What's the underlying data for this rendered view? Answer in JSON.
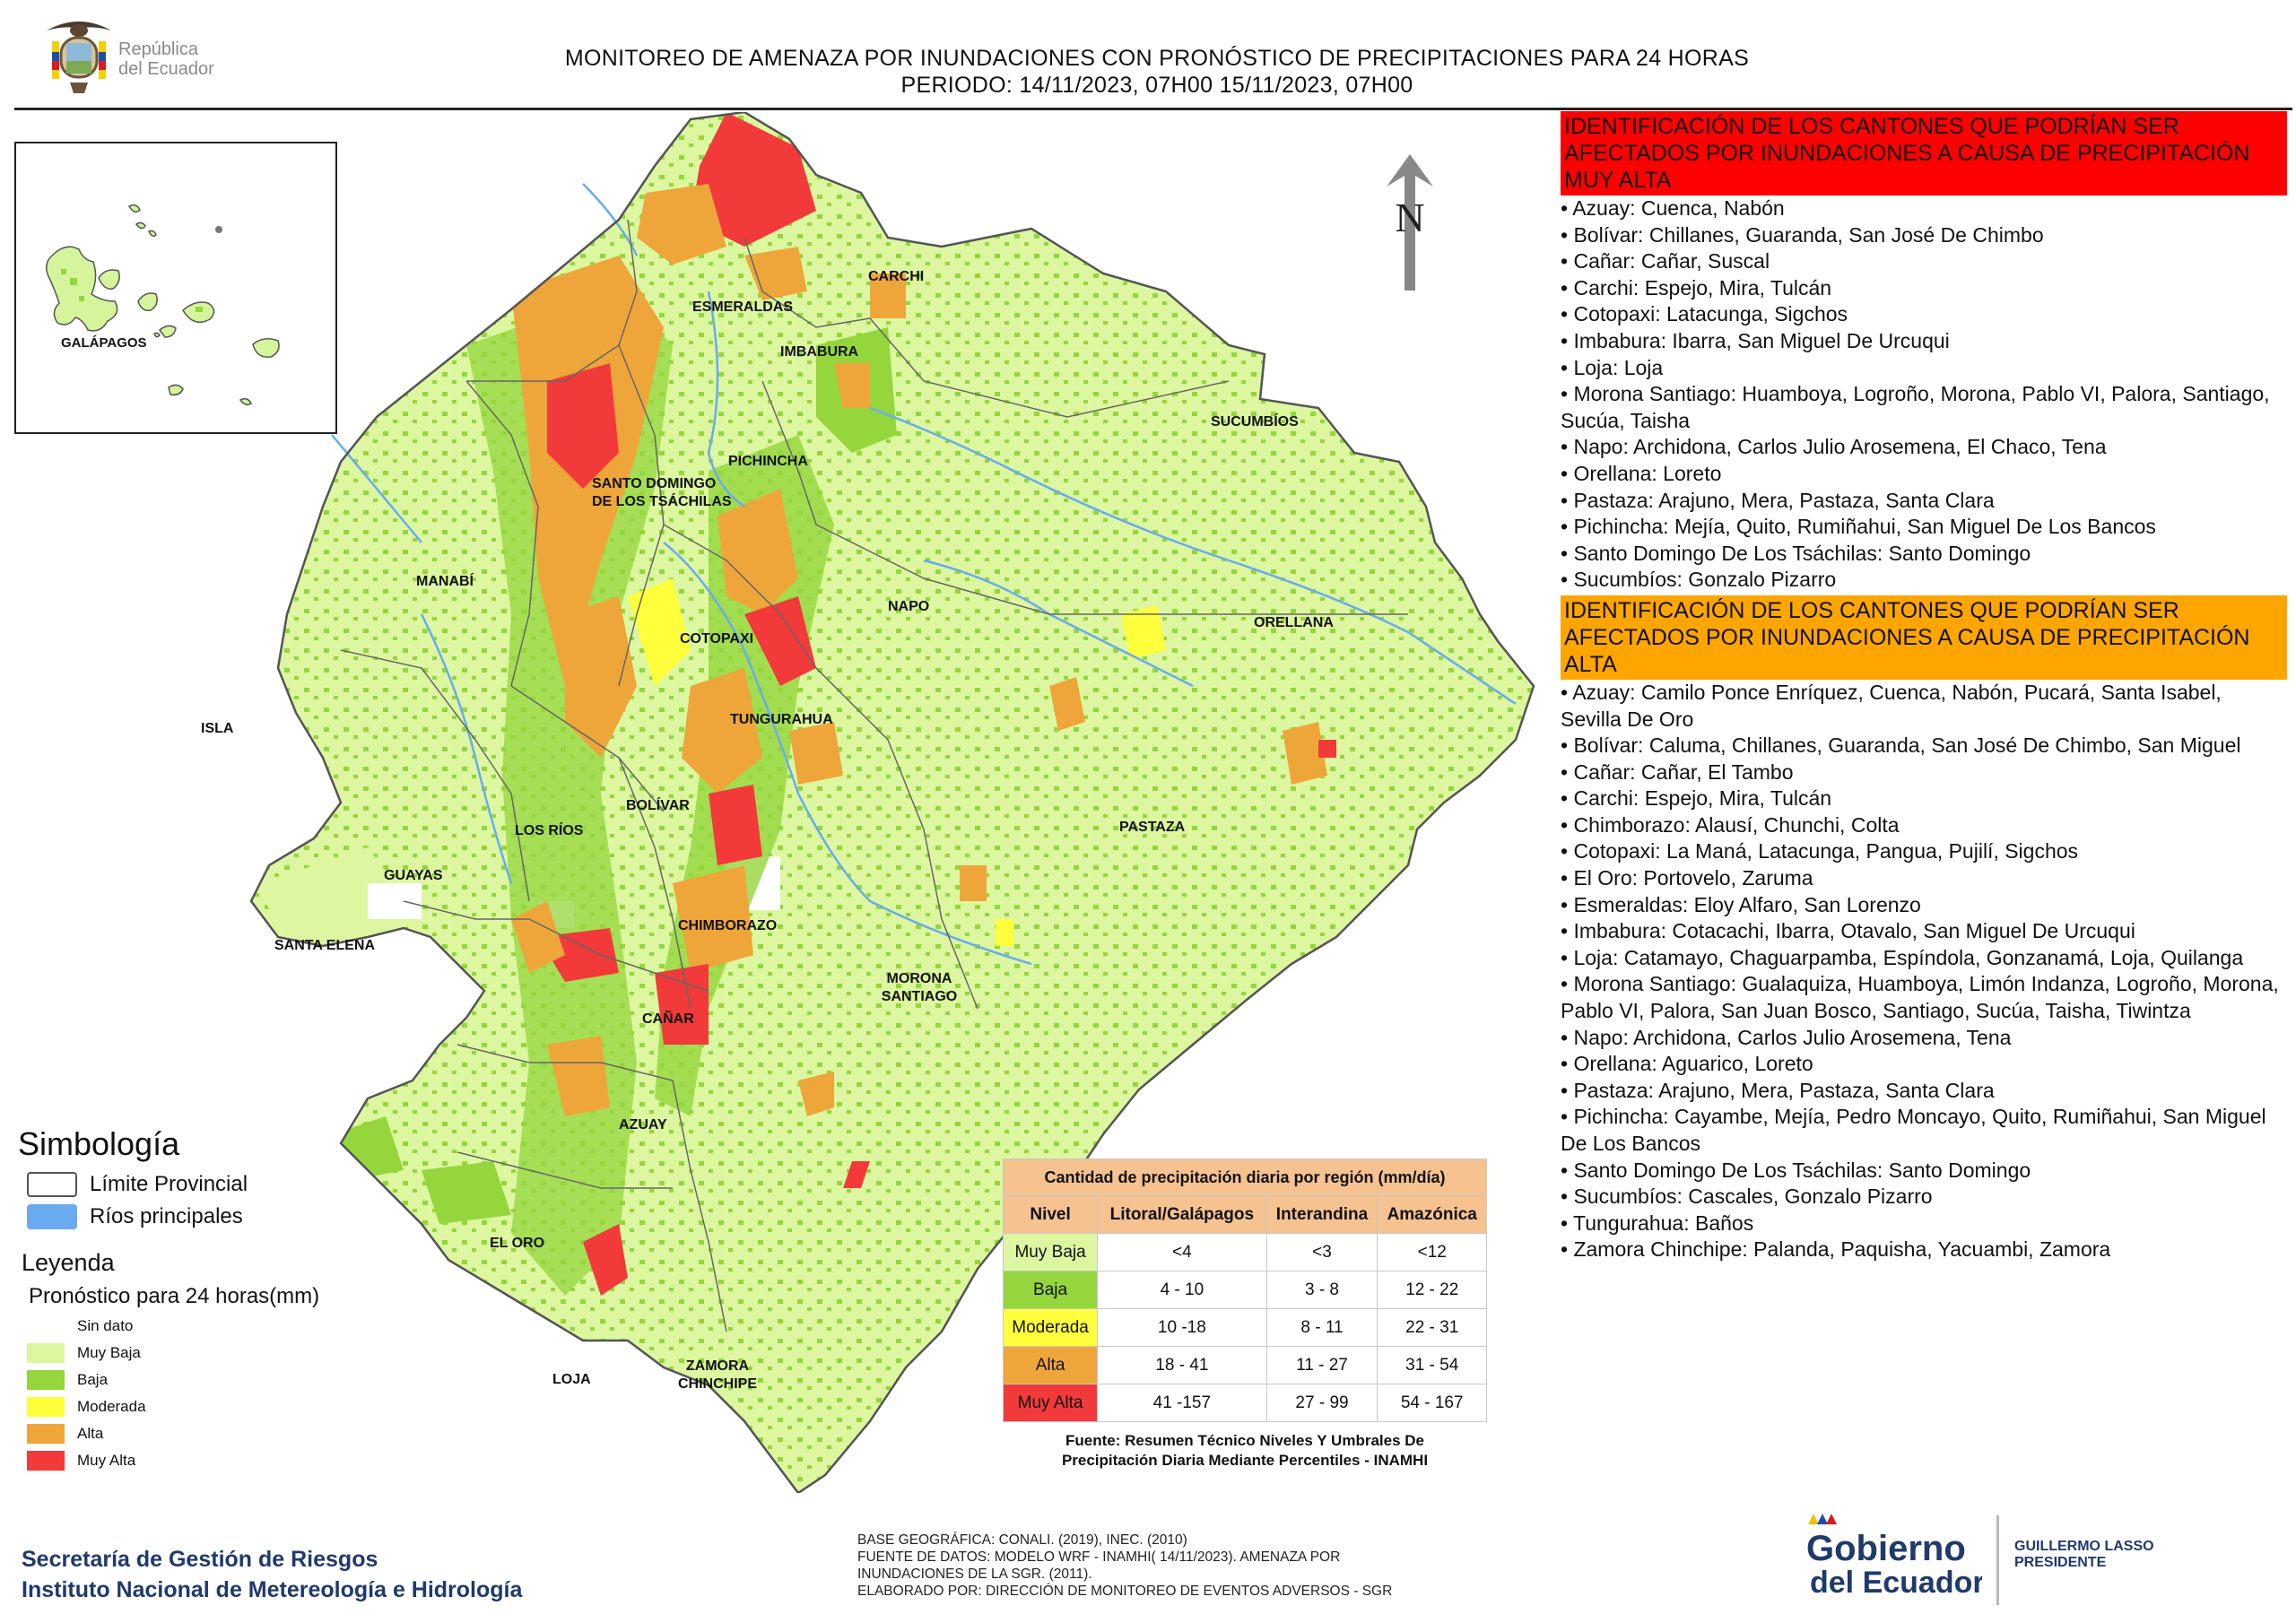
{
  "header": {
    "title_line1": "MONITOREO DE AMENAZA POR INUNDACIONES  CON PRONÓSTICO DE  PRECIPITACIONES PARA 24 HORAS",
    "title_line2": "PERIODO: 14/11/2023, 07H00 15/11/2023, 07H00",
    "logo_text_1": "República",
    "logo_text_2": "del Ecuador"
  },
  "map": {
    "north_label": "N",
    "inset_label": "GALÁPAGOS",
    "provinces": [
      {
        "id": "carchi",
        "label": "CARCHI"
      },
      {
        "id": "esmeraldas",
        "label": "ESMERALDAS"
      },
      {
        "id": "imbabura",
        "label": "IMBABURA"
      },
      {
        "id": "sucumbios",
        "label": "SUCUMBÍOS"
      },
      {
        "id": "pichincha",
        "label": "PICHINCHA"
      },
      {
        "id": "santo-domingo",
        "label": "SANTO DOMINGO DE LOS TSÁCHILAS"
      },
      {
        "id": "manabi",
        "label": "MANABÍ"
      },
      {
        "id": "napo",
        "label": "NAPO"
      },
      {
        "id": "orellana",
        "label": "ORELLANA"
      },
      {
        "id": "cotopaxi",
        "label": "COTOPAXI"
      },
      {
        "id": "isla",
        "label": "ISLA"
      },
      {
        "id": "tungurahua",
        "label": "TUNGURAHUA"
      },
      {
        "id": "bolivar",
        "label": "BOLÍVAR"
      },
      {
        "id": "pastaza",
        "label": "PASTAZA"
      },
      {
        "id": "los-rios",
        "label": "LOS RÍOS"
      },
      {
        "id": "guayas",
        "label": "GUAYAS"
      },
      {
        "id": "santa-elena",
        "label": "SANTA ELENA"
      },
      {
        "id": "chimborazo",
        "label": "CHIMBORAZO"
      },
      {
        "id": "morona",
        "label": "MORONA SANTIAGO"
      },
      {
        "id": "canar",
        "label": "CAÑAR"
      },
      {
        "id": "azuay",
        "label": "AZUAY"
      },
      {
        "id": "el-oro",
        "label": "EL ORO"
      },
      {
        "id": "loja",
        "label": "LOJA"
      },
      {
        "id": "zamora",
        "label": "ZAMORA CHINCHIPE"
      }
    ]
  },
  "muy_alta": {
    "heading": "IDENTIFICACIÓN DE LOS CANTONES QUE PODRÍAN SER AFECTADOS POR INUNDACIONES  A CAUSA DE PRECIPITACIÓN MUY ALTA",
    "items": [
      "Azuay: Cuenca, Nabón",
      "Bolívar: Chillanes, Guaranda, San José De Chimbo",
      "Cañar: Cañar, Suscal",
      "Carchi: Espejo, Mira, Tulcán",
      "Cotopaxi: Latacunga, Sigchos",
      "Imbabura: Ibarra, San Miguel De Urcuqui",
      "Loja: Loja",
      "Morona Santiago: Huamboya, Logroño, Morona, Pablo VI, Palora, Santiago, Sucúa, Taisha",
      "Napo: Archidona, Carlos Julio Arosemena, El Chaco, Tena",
      "Orellana: Loreto",
      "Pastaza: Arajuno, Mera, Pastaza, Santa Clara",
      "Pichincha: Mejía, Quito, Rumiñahui, San Miguel De Los Bancos",
      "Santo Domingo De Los Tsáchilas: Santo Domingo",
      "Sucumbíos: Gonzalo Pizarro"
    ]
  },
  "alta": {
    "heading": "IDENTIFICACIÓN DE LOS CANTONES QUE  PODRÍAN SER AFECTADOS POR INUNDACIONES  A CAUSA DE PRECIPITACIÓN ALTA",
    "items": [
      "Azuay: Camilo Ponce Enríquez, Cuenca, Nabón, Pucará, Santa Isabel, Sevilla De Oro",
      "Bolívar: Caluma, Chillanes, Guaranda, San José De Chimbo, San Miguel",
      "Cañar: Cañar, El Tambo",
      "Carchi: Espejo, Mira, Tulcán",
      "Chimborazo: Alausí, Chunchi, Colta",
      "Cotopaxi: La Maná, Latacunga, Pangua, Pujilí, Sigchos",
      "El Oro: Portovelo, Zaruma",
      "Esmeraldas: Eloy Alfaro, San Lorenzo",
      "Imbabura: Cotacachi, Ibarra, Otavalo, San Miguel De Urcuqui",
      "Loja: Catamayo, Chaguarpamba, Espíndola, Gonzanamá, Loja, Quilanga",
      "Morona Santiago: Gualaquiza, Huamboya, Limón Indanza, Logroño, Morona, Pablo VI, Palora, San Juan Bosco, Santiago, Sucúa, Taisha, Tiwintza",
      "Napo: Archidona, Carlos Julio Arosemena, Tena",
      "Orellana: Aguarico, Loreto",
      "Pastaza: Arajuno, Mera, Pastaza, Santa Clara",
      "Pichincha: Cayambe, Mejía, Pedro Moncayo, Quito, Rumiñahui, San Miguel De Los Bancos",
      "Santo Domingo De Los Tsáchilas: Santo Domingo",
      "Sucumbíos: Cascales, Gonzalo Pizarro",
      "Tungurahua: Baños",
      "Zamora Chinchipe: Palanda, Paquisha, Yacuambi, Zamora"
    ]
  },
  "legend": {
    "title": "Simbología",
    "symbols": [
      {
        "label": "Límite Provincial",
        "color": "#ffffff",
        "border": "#555555"
      },
      {
        "label": "Ríos principales",
        "color": "#6aaaf0",
        "border": "#6aaaf0"
      }
    ],
    "leyenda_label": "Leyenda",
    "pronostico_label": "Pronóstico para 24 horas(mm)",
    "classes": [
      {
        "label": "Sin dato",
        "color": "#ffffff"
      },
      {
        "label": "Muy Baja",
        "color": "#dcf7a0"
      },
      {
        "label": "Baja",
        "color": "#94d63c"
      },
      {
        "label": "Moderada",
        "color": "#ffff3b"
      },
      {
        "label": "Alta",
        "color": "#eea63a"
      },
      {
        "label": "Muy Alta",
        "color": "#f23a3a"
      }
    ]
  },
  "precip_table": {
    "caption": "Cantidad de precipitación diaria por región (mm/día)",
    "headers": [
      "Nivel",
      "Litoral/Galápagos",
      "Interandina",
      "Amazónica"
    ],
    "rows": [
      {
        "nivel": "Muy Baja",
        "color": "#dcf7a0",
        "litoral": "<4",
        "interandina": "<3",
        "amazonica": "<12"
      },
      {
        "nivel": "Baja",
        "color": "#94d63c",
        "litoral": "4 - 10",
        "interandina": "3 - 8",
        "amazonica": "12 - 22"
      },
      {
        "nivel": "Moderada",
        "color": "#ffff3b",
        "litoral": "10 -18",
        "interandina": "8 - 11",
        "amazonica": "22 - 31"
      },
      {
        "nivel": "Alta",
        "color": "#eea63a",
        "litoral": "18 - 41",
        "interandina": "11 - 27",
        "amazonica": "31 - 54"
      },
      {
        "nivel": "Muy Alta",
        "color": "#f23a3a",
        "litoral": "41 -157",
        "interandina": "27 - 99",
        "amazonica": "54 - 167"
      }
    ],
    "source_line1": "Fuente: Resumen Técnico Niveles Y Umbrales De",
    "source_line2": "Precipitación Diaria Mediante Percentiles - INAMHI"
  },
  "footer": {
    "agency_line1": "Secretaría de Gestión de Riesgos",
    "agency_line2": "Instituto Nacional de Metereología e Hidrología",
    "credits": [
      "BASE GEOGRÁFICA: CONALI. (2019), INEC. (2010)",
      "FUENTE DE DATOS: MODELO WRF - INAMHI( 14/11/2023).  AMENAZA POR",
      "INUNDACIONES DE LA SGR. (2011).",
      "ELABORADO POR: DIRECCIÓN DE MONITOREO DE EVENTOS ADVERSOS - SGR"
    ],
    "gob_line1": "Gobierno",
    "gob_line2": "del Ecuador",
    "president_line1": "GUILLERMO LASSO",
    "president_line2": "PRESIDENTE"
  }
}
